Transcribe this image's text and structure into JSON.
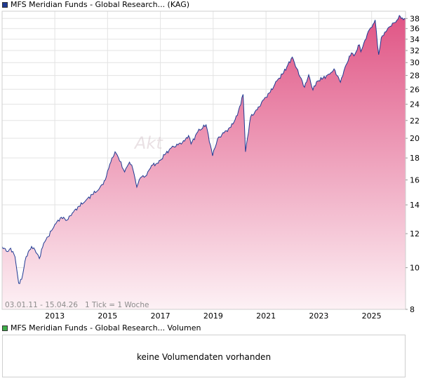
{
  "legend_price": "MFS Meridian Funds - Global Research... (KAG)",
  "legend_volume": "MFS Meridian Funds - Global Research... Volumen",
  "range_info": "03.01.11 - 15.04.26   1 Tick = 1 Woche",
  "watermark": "Akt",
  "volume_message": "keine Volumendaten vorhanden",
  "colors": {
    "line": "#1f3a93",
    "fill_top": "#e05585",
    "fill_bottom": "#fdf1f5",
    "grid": "#e3e3e3"
  },
  "chart_data": {
    "type": "area",
    "title": "",
    "xlabel": "",
    "ylabel": "",
    "y_scale": "log",
    "ylim": [
      8,
      39.5
    ],
    "xlim": [
      "2011-01-03",
      "2026-04-15"
    ],
    "y_ticks": [
      8,
      10,
      12,
      14,
      16,
      18,
      20,
      22,
      24,
      26,
      28,
      30,
      32,
      34,
      36,
      38
    ],
    "x_ticks": [
      "2013",
      "2015",
      "2017",
      "2019",
      "2021",
      "2023",
      "2025"
    ],
    "grid": true,
    "series": [
      {
        "name": "MFS Meridian Funds - Global Research...",
        "points": [
          [
            "2011-01-03",
            11.2
          ],
          [
            "2011-03-15",
            10.9
          ],
          [
            "2011-05-01",
            11.1
          ],
          [
            "2011-07-01",
            10.6
          ],
          [
            "2011-08-20",
            9.2
          ],
          [
            "2011-10-01",
            9.4
          ],
          [
            "2011-12-01",
            10.6
          ],
          [
            "2012-02-15",
            11.2
          ],
          [
            "2012-04-01",
            11.0
          ],
          [
            "2012-06-01",
            10.5
          ],
          [
            "2012-08-01",
            11.4
          ],
          [
            "2012-10-01",
            11.8
          ],
          [
            "2013-01-01",
            12.6
          ],
          [
            "2013-04-01",
            13.1
          ],
          [
            "2013-06-20",
            12.9
          ],
          [
            "2013-09-01",
            13.4
          ],
          [
            "2013-12-01",
            13.9
          ],
          [
            "2014-03-01",
            14.3
          ],
          [
            "2014-06-01",
            14.8
          ],
          [
            "2014-09-01",
            15.2
          ],
          [
            "2014-12-01",
            16.0
          ],
          [
            "2015-02-01",
            17.4
          ],
          [
            "2015-04-15",
            18.6
          ],
          [
            "2015-06-01",
            18.0
          ],
          [
            "2015-08-25",
            16.7
          ],
          [
            "2015-11-01",
            17.6
          ],
          [
            "2015-12-15",
            17.0
          ],
          [
            "2016-02-10",
            15.4
          ],
          [
            "2016-04-01",
            16.2
          ],
          [
            "2016-06-24",
            16.4
          ],
          [
            "2016-09-01",
            17.3
          ],
          [
            "2016-12-01",
            17.5
          ],
          [
            "2017-03-01",
            18.3
          ],
          [
            "2017-06-01",
            19.0
          ],
          [
            "2017-09-01",
            19.3
          ],
          [
            "2017-12-01",
            19.7
          ],
          [
            "2018-01-25",
            20.3
          ],
          [
            "2018-03-01",
            19.4
          ],
          [
            "2018-06-01",
            20.7
          ],
          [
            "2018-09-25",
            21.5
          ],
          [
            "2018-12-24",
            18.2
          ],
          [
            "2019-03-01",
            19.9
          ],
          [
            "2019-06-01",
            20.6
          ],
          [
            "2019-09-01",
            21.2
          ],
          [
            "2019-12-01",
            22.6
          ],
          [
            "2020-02-19",
            25.3
          ],
          [
            "2020-03-23",
            18.6
          ],
          [
            "2020-06-01",
            22.4
          ],
          [
            "2020-09-01",
            23.3
          ],
          [
            "2020-12-01",
            24.6
          ],
          [
            "2021-03-01",
            25.6
          ],
          [
            "2021-06-01",
            27.2
          ],
          [
            "2021-09-01",
            28.4
          ],
          [
            "2021-12-30",
            30.9
          ],
          [
            "2022-03-01",
            29.1
          ],
          [
            "2022-06-17",
            26.3
          ],
          [
            "2022-08-15",
            28.1
          ],
          [
            "2022-10-12",
            25.9
          ],
          [
            "2022-12-01",
            27.1
          ],
          [
            "2023-03-01",
            27.6
          ],
          [
            "2023-06-01",
            28.2
          ],
          [
            "2023-07-31",
            29.0
          ],
          [
            "2023-10-27",
            27.0
          ],
          [
            "2023-12-31",
            29.3
          ],
          [
            "2024-03-28",
            31.6
          ],
          [
            "2024-05-01",
            31.1
          ],
          [
            "2024-07-15",
            33.0
          ],
          [
            "2024-08-05",
            31.8
          ],
          [
            "2024-09-15",
            33.3
          ],
          [
            "2024-12-01",
            35.8
          ],
          [
            "2025-01-20",
            36.8
          ],
          [
            "2025-02-19",
            37.7
          ],
          [
            "2025-04-08",
            31.3
          ],
          [
            "2025-05-15",
            34.3
          ],
          [
            "2025-07-01",
            35.3
          ],
          [
            "2025-09-01",
            36.3
          ],
          [
            "2025-11-01",
            37.1
          ],
          [
            "2025-12-15",
            37.6
          ],
          [
            "2026-01-20",
            38.6
          ],
          [
            "2026-03-01",
            38.1
          ],
          [
            "2026-04-15",
            37.9
          ]
        ]
      }
    ]
  }
}
